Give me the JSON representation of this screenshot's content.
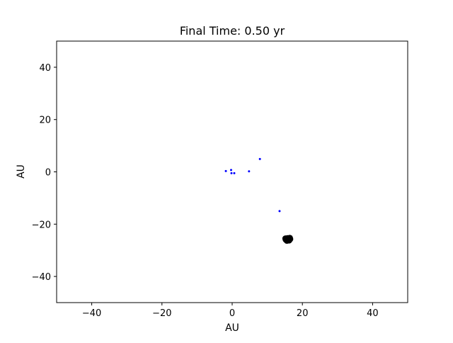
{
  "chart_data": {
    "type": "scatter",
    "title": "Final Time: 0.50 yr",
    "xlabel": "AU",
    "ylabel": "AU",
    "xlim": [
      -50,
      50
    ],
    "ylim": [
      -50,
      50
    ],
    "xticks": [
      -40,
      -20,
      0,
      20,
      40
    ],
    "yticks": [
      -40,
      -20,
      0,
      20,
      40
    ],
    "xtick_labels": [
      "−40",
      "−20",
      "0",
      "20",
      "40"
    ],
    "ytick_labels": [
      "−40",
      "−20",
      "0",
      "20",
      "40"
    ],
    "grid": false,
    "series": [
      {
        "color": "#0000ff",
        "points": [
          {
            "x": -1.8,
            "y": 0.3
          },
          {
            "x": -0.3,
            "y": 0.7
          },
          {
            "x": -0.2,
            "y": -0.5
          },
          {
            "x": 0.6,
            "y": -0.5
          },
          {
            "x": 4.8,
            "y": 0.2
          },
          {
            "x": 7.9,
            "y": 4.9
          },
          {
            "x": 13.5,
            "y": -15.0
          }
        ]
      },
      {
        "color": "#000000",
        "points": [
          {
            "x": 15.9,
            "y": -25.8
          },
          {
            "x": 15.5,
            "y": -25.6
          },
          {
            "x": 16.3,
            "y": -26.0
          },
          {
            "x": 15.7,
            "y": -26.1
          },
          {
            "x": 16.1,
            "y": -25.5
          },
          {
            "x": 15.3,
            "y": -25.9
          },
          {
            "x": 16.5,
            "y": -25.7
          },
          {
            "x": 15.8,
            "y": -25.4
          },
          {
            "x": 16.2,
            "y": -26.2
          },
          {
            "x": 15.6,
            "y": -26.3
          },
          {
            "x": 16.4,
            "y": -25.3
          },
          {
            "x": 15.2,
            "y": -25.5
          }
        ]
      }
    ]
  }
}
